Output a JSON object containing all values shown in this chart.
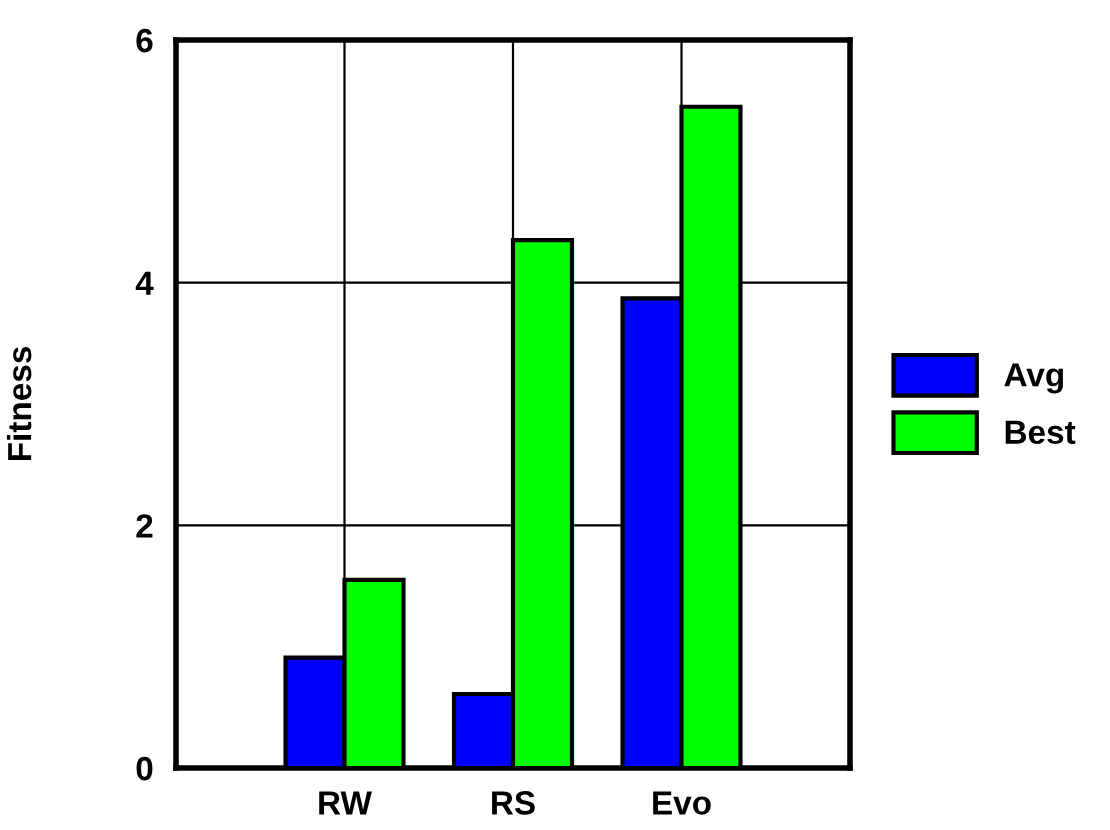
{
  "chart_data": {
    "type": "bar",
    "ylabel": "Fitness",
    "categories": [
      "RW",
      "RS",
      "Evo"
    ],
    "series": [
      {
        "name": "Avg",
        "color": "#0000ff",
        "values": [
          0.91,
          0.61,
          3.87
        ]
      },
      {
        "name": "Best",
        "color": "#00ff00",
        "values": [
          1.55,
          4.35,
          5.45
        ]
      }
    ],
    "ylim": [
      0,
      6
    ],
    "yticks": [
      0,
      2,
      4,
      6
    ],
    "grid": true,
    "legend": "right"
  }
}
